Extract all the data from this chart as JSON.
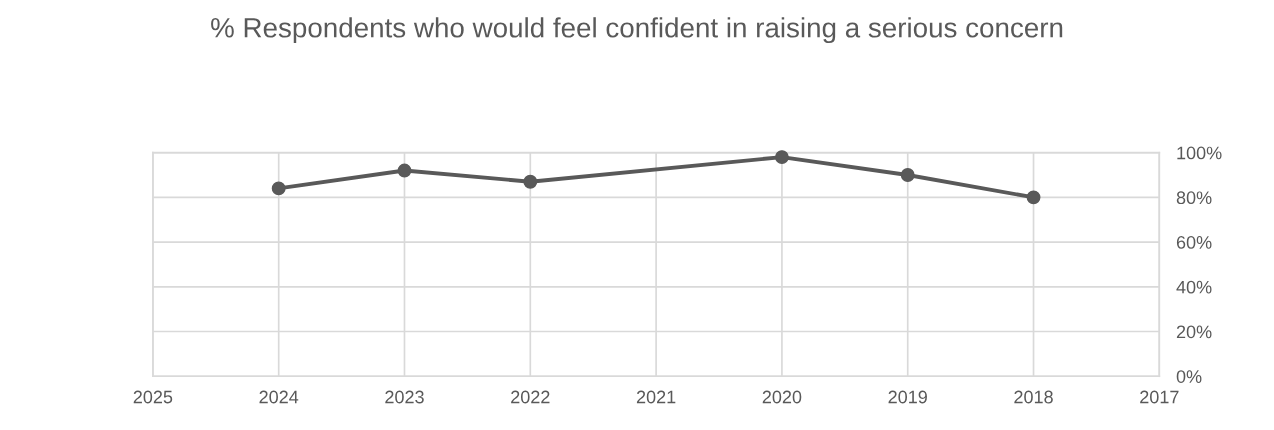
{
  "chart_data": {
    "type": "line",
    "title": "% Respondents who would feel confident in raising a serious concern",
    "x": [
      2024,
      2023,
      2022,
      2020,
      2019,
      2018
    ],
    "series": [
      {
        "color": "#595959",
        "values": [
          84,
          92,
          87,
          98,
          90,
          80
        ]
      }
    ],
    "xlim": [
      2025,
      2017
    ],
    "xticks": [
      2025,
      2024,
      2023,
      2022,
      2021,
      2020,
      2019,
      2018,
      2017
    ],
    "ylim": [
      0,
      100
    ],
    "yticks": [
      {
        "value": 0,
        "label": "0%"
      },
      {
        "value": 20,
        "label": "20%"
      },
      {
        "value": 40,
        "label": "40%"
      },
      {
        "value": 60,
        "label": "60%"
      },
      {
        "value": 80,
        "label": "80%"
      },
      {
        "value": 100,
        "label": "100%"
      }
    ],
    "grid": true,
    "marker": "circle",
    "line_style": "solid",
    "legend": false
  }
}
